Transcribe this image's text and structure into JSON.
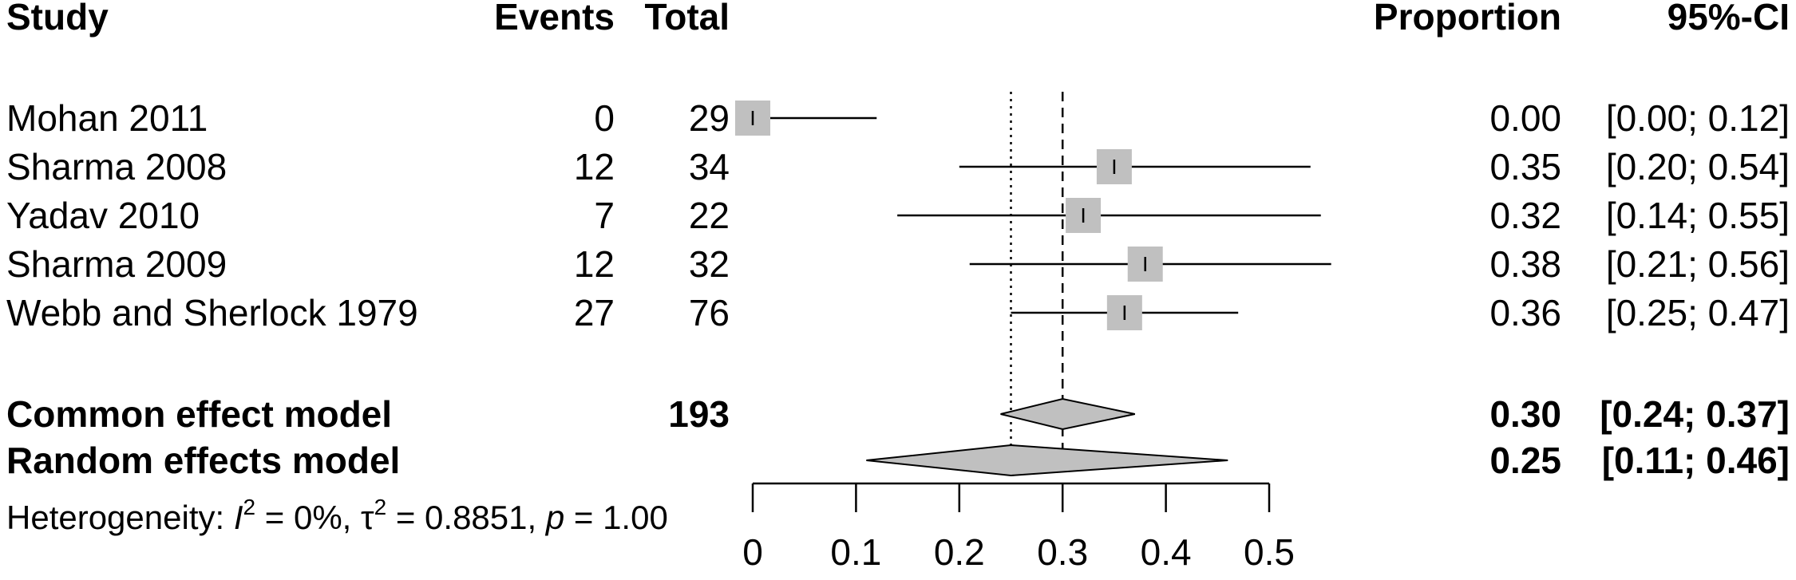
{
  "chart_data": {
    "type": "forest",
    "headers": {
      "study": "Study",
      "events": "Events",
      "total": "Total",
      "proportion": "Proportion",
      "ci": "95%-CI"
    },
    "studies": [
      {
        "name": "Mohan 2011",
        "events": "0",
        "total": "29",
        "proportion": 0.0,
        "ci_low": 0.0,
        "ci_high": 0.12,
        "prop_label": "0.00",
        "ci_label": "[0.00; 0.12]"
      },
      {
        "name": "Sharma 2008",
        "events": "12",
        "total": "34",
        "proportion": 0.35,
        "ci_low": 0.2,
        "ci_high": 0.54,
        "prop_label": "0.35",
        "ci_label": "[0.20; 0.54]"
      },
      {
        "name": "Yadav 2010",
        "events": "7",
        "total": "22",
        "proportion": 0.32,
        "ci_low": 0.14,
        "ci_high": 0.55,
        "prop_label": "0.32",
        "ci_label": "[0.14; 0.55]"
      },
      {
        "name": "Sharma 2009",
        "events": "12",
        "total": "32",
        "proportion": 0.38,
        "ci_low": 0.21,
        "ci_high": 0.56,
        "prop_label": "0.38",
        "ci_label": "[0.21; 0.56]"
      },
      {
        "name": "Webb and Sherlock 1979",
        "events": "27",
        "total": "76",
        "proportion": 0.36,
        "ci_low": 0.25,
        "ci_high": 0.47,
        "prop_label": "0.36",
        "ci_label": "[0.25; 0.47]"
      }
    ],
    "models": [
      {
        "name": "Common effect model",
        "total": "193",
        "proportion": 0.3,
        "ci_low": 0.24,
        "ci_high": 0.37,
        "prop_label": "0.30",
        "ci_label": "[0.24; 0.37]",
        "reference_line": "dashed"
      },
      {
        "name": "Random effects model",
        "total": "",
        "proportion": 0.25,
        "ci_low": 0.11,
        "ci_high": 0.46,
        "prop_label": "0.25",
        "ci_label": "[0.11; 0.46]",
        "reference_line": "dotted"
      }
    ],
    "heterogeneity": {
      "prefix": "Heterogeneity: ",
      "i2_symbol": "I",
      "i2_value": " = 0%, ",
      "tau_symbol": "τ",
      "tau_value": " = 0.8851, ",
      "p_symbol": "p",
      "p_value": " = 1.00",
      "superscript": "2"
    },
    "x_axis": {
      "range": [
        0,
        0.5
      ],
      "ticks": [
        0,
        0.1,
        0.2,
        0.3,
        0.4,
        0.5
      ],
      "tick_labels": [
        "0",
        "0.1",
        "0.2",
        "0.3",
        "0.4",
        "0.5"
      ]
    },
    "colors": {
      "square": "#c0c0c0",
      "diamond": "#c0c0c0",
      "line": "#000000"
    }
  }
}
